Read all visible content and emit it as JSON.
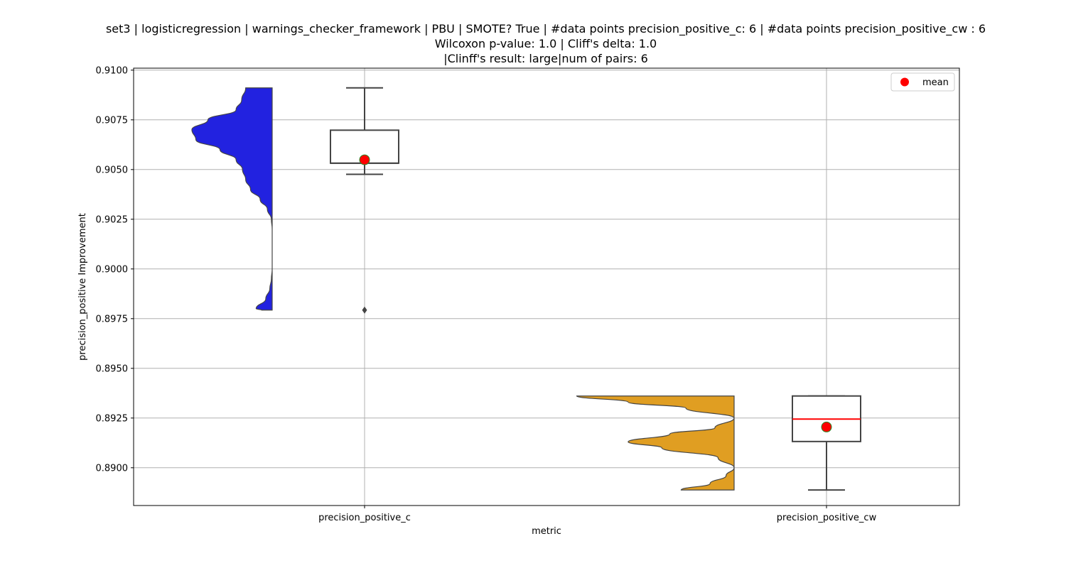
{
  "chart_data": {
    "type": "violin-box",
    "title_lines": [
      "set3 | logisticregression | warnings_checker_framework | PBU | SMOTE? True | #data points precision_positive_c: 6 | #data points precision_positive_cw : 6",
      "Wilcoxon p-value: 1.0 | Cliff's delta: 1.0",
      "|Clinff's result: large|num of pairs: 6"
    ],
    "xlabel": "metric",
    "ylabel": "precision_positive Improvement",
    "ylim": [
      0.8881,
      0.9101
    ],
    "yticks": [
      "0.8900",
      "0.8925",
      "0.8950",
      "0.8975",
      "0.9000",
      "0.9025",
      "0.9050",
      "0.9075",
      "0.9100"
    ],
    "grid": true,
    "legend": {
      "position": "top-right",
      "label": "mean"
    },
    "categories": [
      "precision_positive_c",
      "precision_positive_cw"
    ],
    "series": [
      {
        "category": "precision_positive_c",
        "color": "#2222e0",
        "box": {
          "min": 0.90476,
          "q1": 0.90532,
          "median": 0.90532,
          "q3": 0.90698,
          "max": 0.90911
        },
        "outliers": [
          0.89793
        ],
        "mean": 0.90549,
        "violin_range": [
          0.89793,
          0.90911
        ],
        "violin_profile": [
          [
            0.89793,
            0.13
          ],
          [
            0.898,
            0.2
          ],
          [
            0.8985,
            0.08
          ],
          [
            0.899,
            0.03
          ],
          [
            0.8995,
            0.01
          ],
          [
            0.9,
            0.0
          ],
          [
            0.901,
            0.0
          ],
          [
            0.902,
            0.0
          ],
          [
            0.9025,
            0.01
          ],
          [
            0.903,
            0.06
          ],
          [
            0.9035,
            0.15
          ],
          [
            0.904,
            0.27
          ],
          [
            0.9045,
            0.33
          ],
          [
            0.905,
            0.37
          ],
          [
            0.9055,
            0.45
          ],
          [
            0.906,
            0.65
          ],
          [
            0.9065,
            0.95
          ],
          [
            0.907,
            1.0
          ],
          [
            0.9075,
            0.8
          ],
          [
            0.908,
            0.45
          ],
          [
            0.9085,
            0.38
          ],
          [
            0.90911,
            0.33
          ]
        ]
      },
      {
        "category": "precision_positive_cw",
        "color": "#e09e22",
        "median_color": "#ff0000",
        "box": {
          "min": 0.88888,
          "q1": 0.89132,
          "median": 0.89245,
          "q3": 0.89361,
          "max": 0.89361
        },
        "outliers": [],
        "mean": 0.89205,
        "violin_range": [
          0.88888,
          0.89361
        ],
        "violin_profile": [
          [
            0.88888,
            0.33
          ],
          [
            0.8892,
            0.15
          ],
          [
            0.8896,
            0.05
          ],
          [
            0.89,
            0.0
          ],
          [
            0.8905,
            0.1
          ],
          [
            0.891,
            0.45
          ],
          [
            0.8913,
            0.66
          ],
          [
            0.8917,
            0.4
          ],
          [
            0.892,
            0.12
          ],
          [
            0.8925,
            0.0
          ],
          [
            0.893,
            0.3
          ],
          [
            0.8933,
            0.66
          ],
          [
            0.89361,
            0.98
          ]
        ]
      }
    ]
  }
}
